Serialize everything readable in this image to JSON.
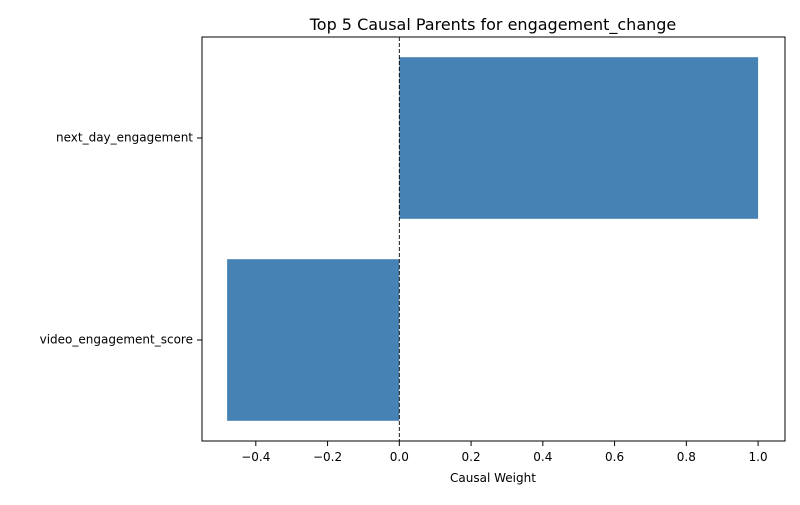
{
  "chart_data": {
    "type": "bar",
    "orientation": "horizontal",
    "title": "Top 5 Causal Parents for engagement_change",
    "xlabel": "Causal Weight",
    "ylabel": "",
    "categories": [
      "next_day_engagement",
      "video_engagement_score"
    ],
    "values": [
      1.0,
      -0.48
    ],
    "xlim": [
      -0.55,
      1.075
    ],
    "xticks": [
      -0.4,
      -0.2,
      0.0,
      0.2,
      0.4,
      0.6,
      0.8,
      1.0
    ],
    "xtick_labels": [
      "−0.4",
      "−0.2",
      "0.0",
      "0.2",
      "0.4",
      "0.6",
      "0.8",
      "1.0"
    ],
    "reference_line": {
      "x": 0.0,
      "style": "dashed",
      "color": "#000000"
    },
    "bar_color": "#4682b4",
    "grid": false,
    "legend": "none"
  }
}
